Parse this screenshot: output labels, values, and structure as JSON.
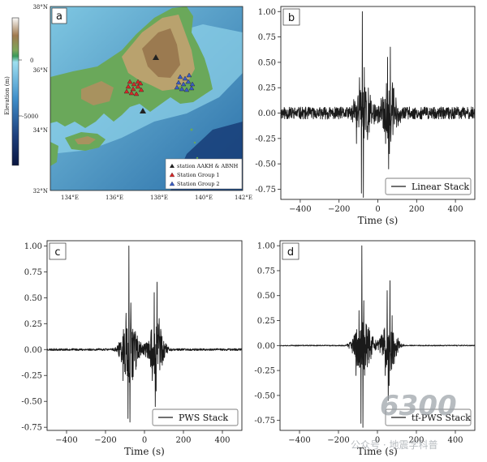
{
  "map_panel": {
    "panel_tag": "a",
    "lat_ticks": [
      "38°N",
      "36°N",
      "34°N",
      "32°N"
    ],
    "lon_ticks": [
      "134°E",
      "136°E",
      "138°E",
      "140°E",
      "142°E"
    ],
    "colorbar": {
      "title": "Elevation (m)",
      "ticks": [
        "0",
        "-5000"
      ]
    },
    "legend": [
      {
        "label": "station AAKH & ABNH",
        "color": "#222222"
      },
      {
        "label": "Station Group 1",
        "color": "#d62728"
      },
      {
        "label": "Station Group 2",
        "color": "#3b5cc4"
      }
    ]
  },
  "chart_data": [
    {
      "panel_tag": "b",
      "type": "line",
      "legend": "Linear Stack",
      "xlabel": "Time (s)",
      "xlim": [
        -500,
        500
      ],
      "ylim": [
        -0.85,
        1.05
      ],
      "x_ticks": [
        -400,
        -200,
        0,
        200,
        400
      ],
      "y_ticks": [
        -0.75,
        -0.5,
        -0.25,
        0.0,
        0.25,
        0.5,
        0.75,
        1.0
      ],
      "series": [
        {
          "noise": 0.06,
          "peak": 1.0,
          "trough": -0.83
        }
      ]
    },
    {
      "panel_tag": "c",
      "type": "line",
      "legend": "PWS Stack",
      "xlabel": "Time (s)",
      "xlim": [
        -500,
        500
      ],
      "ylim": [
        -0.78,
        1.05
      ],
      "x_ticks": [
        -400,
        -200,
        0,
        200,
        400
      ],
      "y_ticks": [
        -0.75,
        -0.5,
        -0.25,
        0.0,
        0.25,
        0.5,
        0.75,
        1.0
      ],
      "series": [
        {
          "noise": 0.01,
          "peak": 1.0,
          "trough": -0.7
        }
      ]
    },
    {
      "panel_tag": "d",
      "type": "line",
      "legend": "tf-PWS  Stack",
      "xlabel": "Time (s)",
      "xlim": [
        -500,
        500
      ],
      "ylim": [
        -0.85,
        1.05
      ],
      "x_ticks": [
        -400,
        -200,
        0,
        200,
        400
      ],
      "y_ticks": [
        -0.75,
        -0.5,
        -0.25,
        0.0,
        0.25,
        0.5,
        0.75,
        1.0
      ],
      "series": [
        {
          "noise": 0.005,
          "peak": 1.0,
          "trough": -0.82
        }
      ]
    }
  ],
  "watermark": {
    "logo_text": "6300",
    "caption": "公众号 · 地震学科普"
  }
}
